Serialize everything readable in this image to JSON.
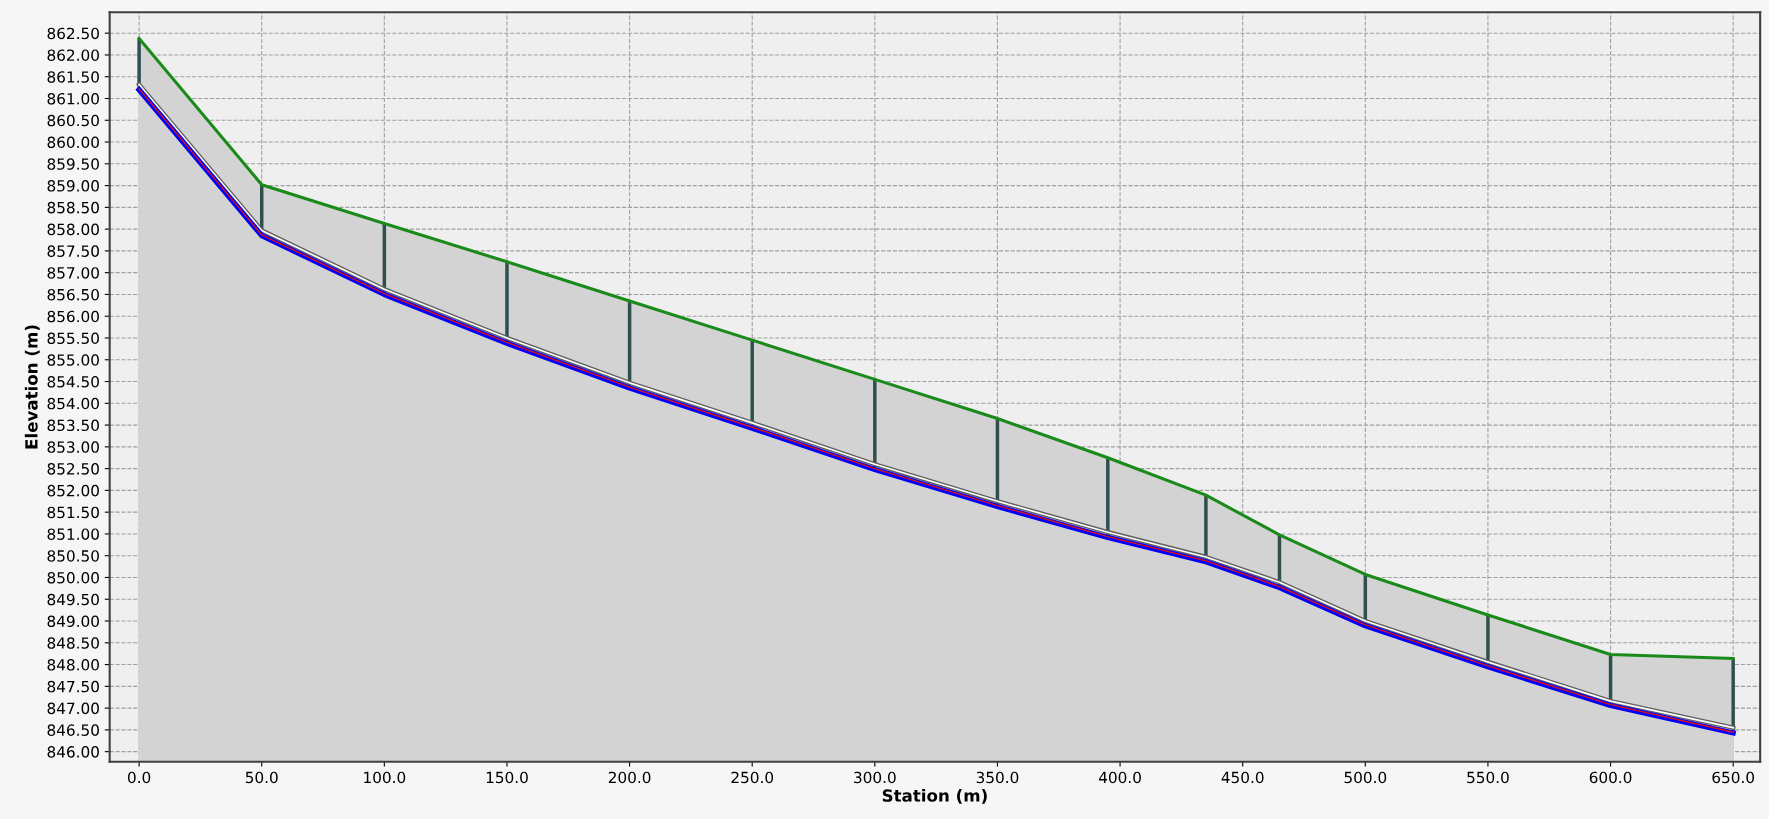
{
  "chart_data": {
    "type": "line",
    "xlabel": "Station (m)",
    "ylabel": "Elevation (m)",
    "x": [
      0,
      50,
      100,
      150,
      200,
      250,
      300,
      350,
      395,
      435,
      465,
      500,
      550,
      600,
      650
    ],
    "series": [
      {
        "type": "area",
        "color": "#1a8a1a",
        "values": [
          862.38,
          859.02,
          858.13,
          857.25,
          856.35,
          855.45,
          854.55,
          853.65,
          852.75,
          851.89,
          850.98,
          850.07,
          849.14,
          848.23,
          848.14
        ]
      },
      {
        "color": "#606060",
        "values": [
          861.32,
          857.97,
          856.62,
          855.5,
          854.47,
          853.55,
          852.6,
          851.75,
          851.04,
          850.47,
          849.89,
          849.0,
          848.06,
          847.16,
          846.55
        ]
      },
      {
        "color": "#0000ff",
        "values": [
          861.2,
          857.85,
          856.5,
          855.38,
          854.35,
          853.43,
          852.48,
          851.63,
          850.92,
          850.36,
          849.77,
          848.89,
          847.95,
          847.06,
          846.43
        ],
        "errors": [
          [
            861.2,
            862.38
          ],
          [
            857.85,
            859.02
          ],
          [
            856.5,
            858.13
          ],
          [
            855.38,
            857.25
          ],
          [
            854.35,
            856.35
          ],
          [
            853.43,
            855.45
          ],
          [
            852.48,
            854.55
          ],
          [
            851.63,
            853.65
          ],
          [
            850.92,
            852.75
          ],
          [
            850.36,
            851.89
          ],
          [
            849.77,
            850.98
          ],
          [
            848.89,
            850.07
          ],
          [
            847.95,
            849.14
          ],
          [
            847.06,
            848.23
          ],
          [
            846.43,
            848.14
          ]
        ]
      },
      {
        "color": "#e01010",
        "values": [
          861.22,
          857.87,
          856.52,
          855.4,
          854.37,
          853.45,
          852.5,
          851.65,
          850.94,
          850.38,
          849.79,
          848.91,
          847.97,
          847.08,
          846.45
        ]
      }
    ],
    "xlim": [
      -12,
      661
    ],
    "ylim": [
      845.77,
      862.98
    ],
    "xticks": [
      {
        "value": 0,
        "label": "0.0"
      },
      {
        "value": 50,
        "label": "50.0"
      },
      {
        "value": 100,
        "label": "100.0"
      },
      {
        "value": 150,
        "label": "150.0"
      },
      {
        "value": 200,
        "label": "200.0"
      },
      {
        "value": 250,
        "label": "250.0"
      },
      {
        "value": 300,
        "label": "300.0"
      },
      {
        "value": 350,
        "label": "350.0"
      },
      {
        "value": 400,
        "label": "400.0"
      },
      {
        "value": 450,
        "label": "450.0"
      },
      {
        "value": 500,
        "label": "500.0"
      },
      {
        "value": 550,
        "label": "550.0"
      },
      {
        "value": 600,
        "label": "600.0"
      },
      {
        "value": 650,
        "label": "650.0"
      }
    ],
    "yticks": [
      {
        "value": 846,
        "label": "846.00"
      },
      {
        "value": 846.5,
        "label": "846.50"
      },
      {
        "value": 847,
        "label": "847.00"
      },
      {
        "value": 847.5,
        "label": "847.50"
      },
      {
        "value": 848,
        "label": "848.00"
      },
      {
        "value": 848.5,
        "label": "848.50"
      },
      {
        "value": 849,
        "label": "849.00"
      },
      {
        "value": 849.5,
        "label": "849.50"
      },
      {
        "value": 850,
        "label": "850.00"
      },
      {
        "value": 850.5,
        "label": "850.50"
      },
      {
        "value": 851,
        "label": "851.00"
      },
      {
        "value": 851.5,
        "label": "851.50"
      },
      {
        "value": 852,
        "label": "852.00"
      },
      {
        "value": 852.5,
        "label": "852.50"
      },
      {
        "value": 853,
        "label": "853.00"
      },
      {
        "value": 853.5,
        "label": "853.50"
      },
      {
        "value": 854,
        "label": "854.00"
      },
      {
        "value": 854.5,
        "label": "854.50"
      },
      {
        "value": 855,
        "label": "855.00"
      },
      {
        "value": 855.5,
        "label": "855.50"
      },
      {
        "value": 856,
        "label": "856.00"
      },
      {
        "value": 856.5,
        "label": "856.50"
      },
      {
        "value": 857,
        "label": "857.00"
      },
      {
        "value": 857.5,
        "label": "857.50"
      },
      {
        "value": 858,
        "label": "858.00"
      },
      {
        "value": 858.5,
        "label": "858.50"
      },
      {
        "value": 859,
        "label": "859.00"
      },
      {
        "value": 859.5,
        "label": "859.50"
      },
      {
        "value": 860,
        "label": "860.00"
      },
      {
        "value": 860.5,
        "label": "860.50"
      },
      {
        "value": 861,
        "label": "861.00"
      },
      {
        "value": 861.5,
        "label": "861.50"
      },
      {
        "value": 862,
        "label": "862.00"
      },
      {
        "value": 862.5,
        "label": "862.50"
      }
    ],
    "grid": true,
    "marker": "none",
    "line_style": "solid"
  }
}
